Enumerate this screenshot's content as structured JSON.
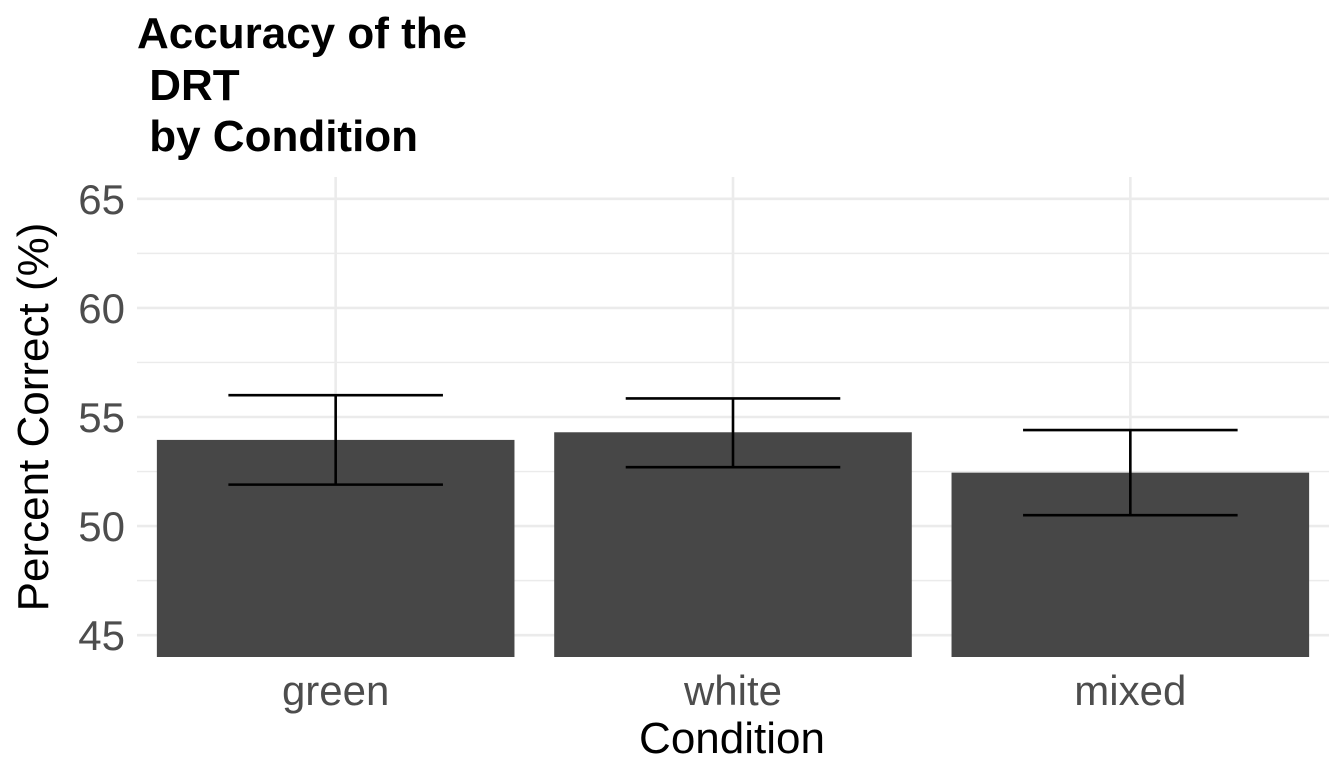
{
  "chart_data": {
    "type": "bar",
    "title_lines": [
      "Accuracy of the",
      " DRT",
      " by Condition"
    ],
    "xlabel": "Condition",
    "ylabel": "Percent Correct (%)",
    "categories": [
      "green",
      "white",
      "mixed"
    ],
    "values": [
      53.95,
      54.3,
      52.45
    ],
    "error_low": [
      51.9,
      52.7,
      50.5
    ],
    "error_high": [
      56.0,
      55.85,
      54.4
    ],
    "ylim": [
      44,
      66
    ],
    "y_ticks": [
      "45",
      "50",
      "55",
      "60",
      "65"
    ],
    "grid": true,
    "bar_color": "#474747"
  }
}
